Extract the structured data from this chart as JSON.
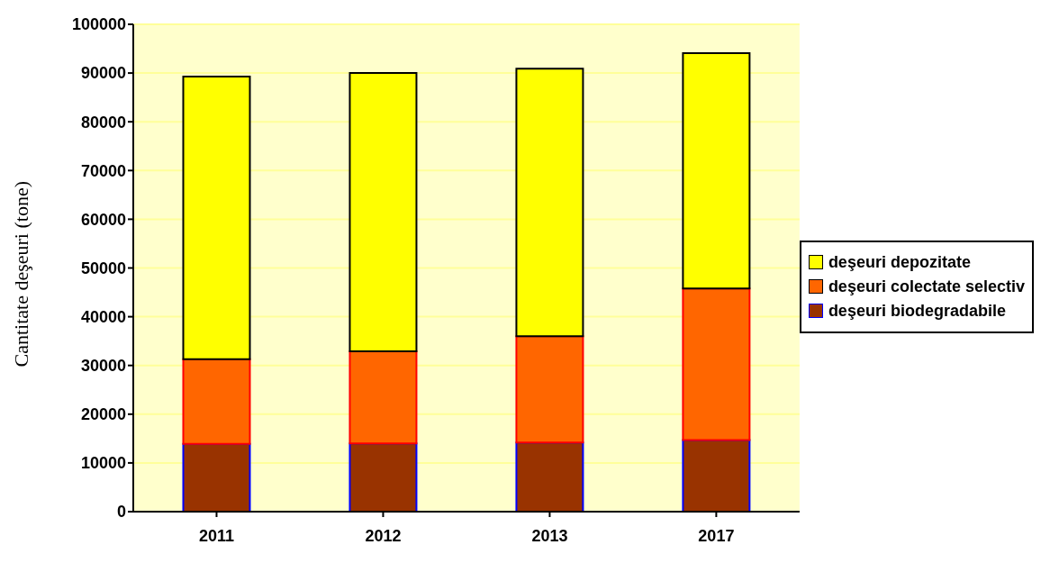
{
  "chart_data": {
    "type": "bar",
    "ylabel": "Cantitate deşeuri  (tone)",
    "categories": [
      "2011",
      "2012",
      "2013",
      "2017"
    ],
    "series": [
      {
        "name": "deşeuri biodegradabile",
        "color": "#993300",
        "values": [
          13900,
          14000,
          14200,
          14700
        ]
      },
      {
        "name": "deşeuri colectate selectiv",
        "color": "#ff6600",
        "values": [
          17400,
          18900,
          21800,
          31100
        ]
      },
      {
        "name": "deşeuri depozitate",
        "color": "#ffff00",
        "values": [
          58000,
          57100,
          54900,
          48300
        ]
      }
    ],
    "stacked": true,
    "ylim": [
      0,
      100000
    ],
    "yticks": [
      0,
      10000,
      20000,
      30000,
      40000,
      50000,
      60000,
      70000,
      80000,
      90000,
      100000
    ],
    "grid": "y",
    "legend": "right"
  }
}
